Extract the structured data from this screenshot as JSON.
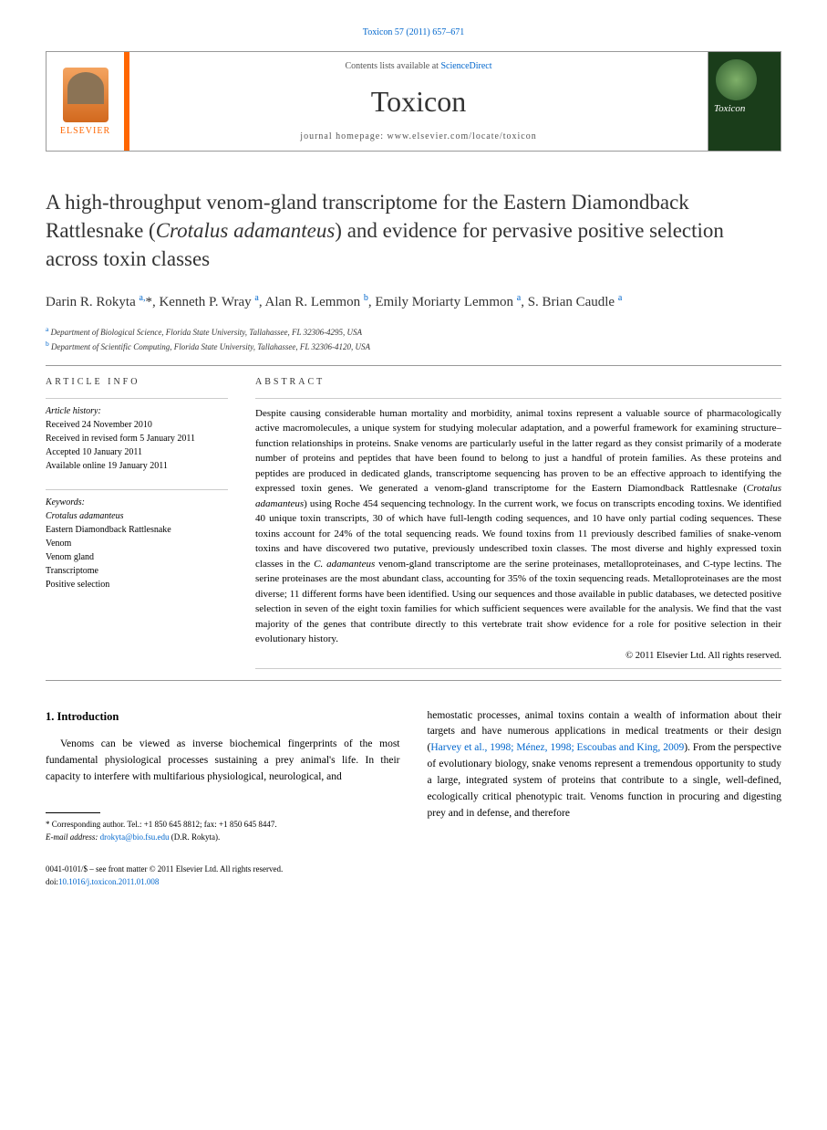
{
  "journal_ref": "Toxicon 57 (2011) 657–671",
  "header": {
    "contents_line_pre": "Contents lists available at ",
    "contents_line_link": "ScienceDirect",
    "journal_title": "Toxicon",
    "homepage_pre": "journal homepage: ",
    "homepage_url": "www.elsevier.com/locate/toxicon",
    "elsevier_brand": "ELSEVIER",
    "cover_title": "Toxicon"
  },
  "title_parts": {
    "pre": "A high-throughput venom-gland transcriptome for the Eastern Diamondback Rattlesnake (",
    "species": "Crotalus adamanteus",
    "post": ") and evidence for pervasive positive selection across toxin classes"
  },
  "authors_html": "Darin R. Rokyta <sup>a,</sup>*, Kenneth P. Wray <sup>a</sup>, Alan R. Lemmon <sup>b</sup>, Emily Moriarty Lemmon <sup>a</sup>, S. Brian Caudle <sup>a</sup>",
  "affiliations": [
    {
      "sup": "a",
      "text": "Department of Biological Science, Florida State University, Tallahassee, FL 32306-4295, USA"
    },
    {
      "sup": "b",
      "text": "Department of Scientific Computing, Florida State University, Tallahassee, FL 32306-4120, USA"
    }
  ],
  "article_info": {
    "head": "ARTICLE INFO",
    "history_label": "Article history:",
    "history": [
      "Received 24 November 2010",
      "Received in revised form 5 January 2011",
      "Accepted 10 January 2011",
      "Available online 19 January 2011"
    ],
    "keywords_label": "Keywords:",
    "keywords": [
      "Crotalus adamanteus",
      "Eastern Diamondback Rattlesnake",
      "Venom",
      "Venom gland",
      "Transcriptome",
      "Positive selection"
    ]
  },
  "abstract": {
    "head": "ABSTRACT",
    "text_parts": [
      "Despite causing considerable human mortality and morbidity, animal toxins represent a valuable source of pharmacologically active macromolecules, a unique system for studying molecular adaptation, and a powerful framework for examining structure–function relationships in proteins. Snake venoms are particularly useful in the latter regard as they consist primarily of a moderate number of proteins and peptides that have been found to belong to just a handful of protein families. As these proteins and peptides are produced in dedicated glands, transcriptome sequencing has proven to be an effective approach to identifying the expressed toxin genes. We generated a venom-gland transcriptome for the Eastern Diamondback Rattlesnake (",
      "Crotalus adamanteus",
      ") using Roche 454 sequencing technology. In the current work, we focus on transcripts encoding toxins. We identified 40 unique toxin transcripts, 30 of which have full-length coding sequences, and 10 have only partial coding sequences. These toxins account for 24% of the total sequencing reads. We found toxins from 11 previously described families of snake-venom toxins and have discovered two putative, previously undescribed toxin classes. The most diverse and highly expressed toxin classes in the ",
      "C. adamanteus",
      " venom-gland transcriptome are the serine proteinases, metalloproteinases, and C-type lectins. The serine proteinases are the most abundant class, accounting for 35% of the toxin sequencing reads. Metalloproteinases are the most diverse; 11 different forms have been identified. Using our sequences and those available in public databases, we detected positive selection in seven of the eight toxin families for which sufficient sequences were available for the analysis. We find that the vast majority of the genes that contribute directly to this vertebrate trait show evidence for a role for positive selection in their evolutionary history."
    ],
    "copyright": "© 2011 Elsevier Ltd. All rights reserved."
  },
  "body": {
    "heading": "1. Introduction",
    "col1": "Venoms can be viewed as inverse biochemical fingerprints of the most fundamental physiological processes sustaining a prey animal's life. In their capacity to interfere with multifarious physiological, neurological, and",
    "col2_pre": "hemostatic processes, animal toxins contain a wealth of information about their targets and have numerous applications in medical treatments or their design (",
    "col2_ref": "Harvey et al., 1998; Ménez, 1998; Escoubas and King, 2009",
    "col2_post": "). From the perspective of evolutionary biology, snake venoms represent a tremendous opportunity to study a large, integrated system of proteins that contribute to a single, well-defined, ecologically critical phenotypic trait. Venoms function in procuring and digesting prey and in defense, and therefore"
  },
  "footnote": {
    "corresponding": "* Corresponding author. Tel.: +1 850 645 8812; fax: +1 850 645 8447.",
    "email_label": "E-mail address: ",
    "email": "drokyta@bio.fsu.edu",
    "email_name": " (D.R. Rokyta)."
  },
  "footer": {
    "line1": "0041-0101/$ – see front matter © 2011 Elsevier Ltd. All rights reserved.",
    "doi_pre": "doi:",
    "doi": "10.1016/j.toxicon.2011.01.008"
  },
  "colors": {
    "link": "#0066cc",
    "orange": "#ff6600",
    "text": "#000000"
  }
}
